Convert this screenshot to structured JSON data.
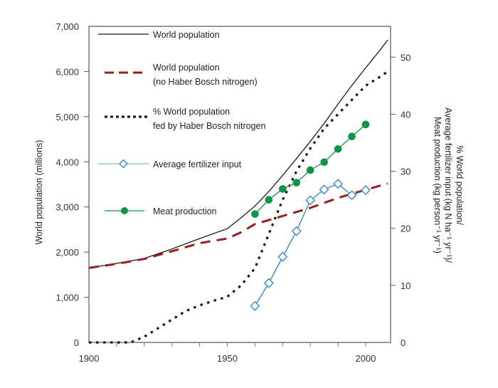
{
  "chart_data": {
    "type": "line",
    "title": "",
    "xlabel": "",
    "ylabel_left": "World population (millions)",
    "ylabel_right_lines": [
      "% World population/",
      "Average fertilizer input (kg N ha⁻¹ yr⁻¹)/",
      "Meat production (kg person⁻¹ yr⁻¹)"
    ],
    "xlim": [
      1900,
      2009
    ],
    "ylim_left": [
      0,
      7000
    ],
    "ylim_right": [
      0,
      55.4
    ],
    "x_ticks": [
      1900,
      1950,
      2000
    ],
    "x_tick_labels": [
      "1900",
      "1950",
      "2000"
    ],
    "x_minor_ticks": [
      1910,
      1920,
      1930,
      1940,
      1960,
      1970,
      1980,
      1990
    ],
    "y_left_ticks": [
      0,
      1000,
      2000,
      3000,
      4000,
      5000,
      6000,
      7000
    ],
    "y_left_tick_labels": [
      "0",
      "1,000",
      "2,000",
      "3,000",
      "4,000",
      "5,000",
      "6,000",
      "7,000"
    ],
    "y_right_ticks": [
      0,
      10,
      20,
      30,
      40,
      50
    ],
    "y_right_tick_labels": [
      "0",
      "10",
      "20",
      "30",
      "40",
      "50"
    ],
    "grid": false,
    "legend_position": "top-left",
    "series": [
      {
        "name": "World population",
        "legend_lines": [
          "World population"
        ],
        "axis": "left",
        "style": "solid",
        "marker": "none",
        "color": "#1a1a1a",
        "x": [
          1900,
          1910,
          1920,
          1930,
          1940,
          1950,
          1955,
          1960,
          1965,
          1970,
          1975,
          1980,
          1985,
          1990,
          1995,
          2000,
          2005,
          2008
        ],
        "values": [
          1650,
          1750,
          1860,
          2070,
          2300,
          2520,
          2760,
          3020,
          3340,
          3700,
          4070,
          4450,
          4850,
          5280,
          5690,
          6080,
          6460,
          6700
        ]
      },
      {
        "name": "World population (no Haber Bosch nitrogen)",
        "legend_lines": [
          "World population",
          "(no Haber Bosch nitrogen)"
        ],
        "axis": "left",
        "style": "dashed",
        "marker": "none",
        "color": "#9b1c1f",
        "x": [
          1900,
          1910,
          1920,
          1930,
          1940,
          1950,
          1955,
          1960,
          1970,
          1980,
          1990,
          2000,
          2008
        ],
        "values": [
          1650,
          1740,
          1850,
          2020,
          2200,
          2300,
          2440,
          2620,
          2800,
          2980,
          3200,
          3380,
          3520
        ]
      },
      {
        "name": "% World population fed by Haber Bosch nitrogen",
        "legend_lines": [
          "% World population",
          "fed by Haber Bosch nitrogen"
        ],
        "axis": "right",
        "style": "dotted",
        "marker": "none",
        "color": "#1a1a1a",
        "x": [
          1900,
          1910,
          1915,
          1920,
          1925,
          1930,
          1935,
          1940,
          1945,
          1950,
          1955,
          1960,
          1965,
          1970,
          1975,
          1980,
          1985,
          1990,
          1995,
          2000,
          2005,
          2008
        ],
        "values": [
          0,
          0,
          0,
          1,
          2.5,
          4,
          5.5,
          6.5,
          7.3,
          8,
          10,
          13,
          19,
          25,
          30,
          34,
          37.5,
          40,
          42.5,
          45,
          46.5,
          47.5
        ]
      },
      {
        "name": "Average fertilizer input",
        "legend_lines": [
          "Average fertilizer input"
        ],
        "axis": "right",
        "style": "solid",
        "marker": "open-diamond",
        "color": "#2f7fc4",
        "x": [
          1960,
          1965,
          1970,
          1975,
          1980,
          1985,
          1990,
          1995,
          2000
        ],
        "values": [
          6.4,
          10.4,
          15.0,
          19.5,
          24.9,
          26.8,
          27.8,
          25.8,
          26.7
        ]
      },
      {
        "name": "Meat production",
        "legend_lines": [
          "Meat production"
        ],
        "axis": "right",
        "style": "solid",
        "marker": "filled-circle",
        "color": "#0f9447",
        "x": [
          1960,
          1965,
          1970,
          1975,
          1980,
          1985,
          1990,
          1995,
          2000
        ],
        "values": [
          22.5,
          25.0,
          26.9,
          28.0,
          30.2,
          31.6,
          33.9,
          36.1,
          38.2
        ]
      }
    ]
  }
}
